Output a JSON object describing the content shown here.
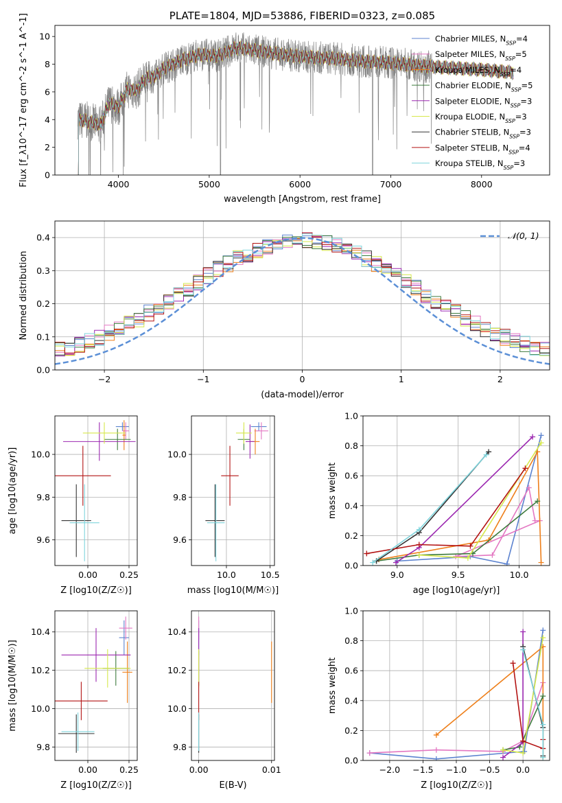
{
  "figure": {
    "colors": {
      "cmiles": "#5b82cf",
      "smiles": "#e377c2",
      "kmiles": "#ee7f1a",
      "celodie": "#3d7a3d",
      "selodie": "#9b27b0",
      "kelodie": "#d6e84a",
      "cstelib": "#333333",
      "sstelib": "#b31212",
      "kstelib": "#7ed4dc",
      "normal": "#5b8fd6",
      "data": "#808080"
    }
  },
  "chart_data": [
    {
      "id": "spectrum",
      "type": "line",
      "title": "PLATE=1804, MJD=53886, FIBERID=0323, z=0.085",
      "xlabel": "wavelength [Angstrom, rest frame]",
      "ylabel": "Flux [f_λ10^-17 erg cm^-2 s^-1 A^-1]",
      "xlim": [
        3300,
        8750
      ],
      "ylim": [
        0,
        10.8
      ],
      "xticks": [
        4000,
        5000,
        6000,
        7000,
        8000
      ],
      "yticks": [
        0,
        2,
        4,
        6,
        8,
        10
      ],
      "grid": false,
      "legend_position": "top-right",
      "legend": [
        {
          "label": "Chabrier MILES, N",
          "sub": "SSP",
          "tail": "=4",
          "color": "cmiles"
        },
        {
          "label": "Salpeter MILES, N",
          "sub": "SSP",
          "tail": "=5",
          "color": "smiles"
        },
        {
          "label": "Kroupa MILES, N",
          "sub": "SSP",
          "tail": "=4",
          "color": "kmiles"
        },
        {
          "label": "Chabrier ELODIE, N",
          "sub": "SSP",
          "tail": "=5",
          "color": "celodie"
        },
        {
          "label": "Salpeter ELODIE, N",
          "sub": "SSP",
          "tail": "=3",
          "color": "selodie"
        },
        {
          "label": "Kroupa ELODIE, N",
          "sub": "SSP",
          "tail": "=3",
          "color": "kelodie"
        },
        {
          "label": "Chabrier STELIB, N",
          "sub": "SSP",
          "tail": "=3",
          "color": "cstelib"
        },
        {
          "label": "Salpeter STELIB, N",
          "sub": "SSP",
          "tail": "=4",
          "color": "sstelib"
        },
        {
          "label": "Kroupa STELIB, N",
          "sub": "SSP",
          "tail": "=3",
          "color": "kstelib"
        }
      ],
      "model_shape": {
        "x": [
          3550,
          3650,
          3800,
          3900,
          4000,
          4100,
          4200,
          4300,
          4400,
          4500,
          4700,
          4900,
          5100,
          5300,
          5500,
          5800,
          6100,
          6400,
          6700,
          7000,
          7300,
          7500,
          8000,
          8350
        ],
        "y": [
          4.0,
          3.9,
          3.6,
          5.2,
          4.9,
          6.2,
          6.1,
          7.0,
          7.1,
          7.7,
          8.3,
          8.7,
          8.6,
          9.2,
          9.0,
          8.7,
          8.5,
          8.4,
          8.2,
          8.1,
          7.9,
          7.8,
          7.6,
          7.4
        ]
      }
    },
    {
      "id": "residuals",
      "type": "histogram",
      "xlabel": "(data-model)/error",
      "ylabel": "Normed distribution",
      "xlim": [
        -2.5,
        2.5
      ],
      "ylim": [
        0,
        0.45
      ],
      "xticks": [
        -2,
        -1,
        0,
        1,
        2
      ],
      "yticks": [
        0.0,
        0.1,
        0.2,
        0.3,
        0.4
      ],
      "grid": true,
      "legend_position": "top-right",
      "reference_curve": {
        "label": "𝒩(0, 1)",
        "mean": 0,
        "sigma": 1
      },
      "bin_width": 0.1
    },
    {
      "id": "age_vs_Z",
      "type": "errorbar",
      "xlabel": "Z [log10(Z/Z☉)]",
      "ylabel": "age  [log10(age/yr)]",
      "xlim": [
        -0.2,
        0.3
      ],
      "ylim": [
        9.48,
        10.18
      ],
      "xticks": [
        0.0,
        0.25
      ],
      "yticks": [
        9.6,
        9.8,
        10.0
      ],
      "grid": true,
      "points": [
        {
          "m": "cmiles",
          "x": 0.21,
          "xe": 0.04,
          "y": 10.13,
          "ye": 0.02
        },
        {
          "m": "smiles",
          "x": 0.23,
          "xe": 0.02,
          "y": 10.11,
          "ye": 0.04
        },
        {
          "m": "kmiles",
          "x": 0.22,
          "xe": 0.01,
          "y": 10.09,
          "ye": 0.07
        },
        {
          "m": "celodie",
          "x": 0.18,
          "xe": 0.08,
          "y": 10.07,
          "ye": 0.05
        },
        {
          "m": "selodie",
          "x": 0.07,
          "xe": 0.22,
          "y": 10.06,
          "ye": 0.09
        },
        {
          "m": "kelodie",
          "x": 0.1,
          "xe": 0.13,
          "y": 10.1,
          "ye": 0.05
        },
        {
          "m": "cstelib",
          "x": -0.07,
          "xe": 0.09,
          "y": 9.69,
          "ye": 0.17
        },
        {
          "m": "sstelib",
          "x": -0.03,
          "xe": 0.17,
          "y": 9.9,
          "ye": 0.14
        },
        {
          "m": "kstelib",
          "x": -0.02,
          "xe": 0.09,
          "y": 9.68,
          "ye": 0.18
        }
      ]
    },
    {
      "id": "age_vs_mass",
      "type": "errorbar",
      "xlabel": "mass [log10(M/M☉)]",
      "ylabel": "",
      "xlim": [
        9.6,
        10.55
      ],
      "ylim": [
        9.48,
        10.18
      ],
      "xticks": [
        10.0,
        10.5
      ],
      "yticks": [
        9.6,
        9.8,
        10.0
      ],
      "grid": true,
      "points": [
        {
          "m": "cmiles",
          "x": 10.37,
          "xe": 0.09,
          "y": 10.13,
          "ye": 0.02
        },
        {
          "m": "smiles",
          "x": 10.4,
          "xe": 0.08,
          "y": 10.11,
          "ye": 0.04
        },
        {
          "m": "kmiles",
          "x": 10.33,
          "xe": 0.05,
          "y": 10.06,
          "ye": 0.06
        },
        {
          "m": "celodie",
          "x": 10.2,
          "xe": 0.07,
          "y": 10.07,
          "ye": 0.05
        },
        {
          "m": "selodie",
          "x": 10.27,
          "xe": 0.05,
          "y": 10.06,
          "ye": 0.08
        },
        {
          "m": "kelodie",
          "x": 10.2,
          "xe": 0.09,
          "y": 10.1,
          "ye": 0.05
        },
        {
          "m": "cstelib",
          "x": 9.87,
          "xe": 0.11,
          "y": 9.69,
          "ye": 0.17
        },
        {
          "m": "sstelib",
          "x": 10.04,
          "xe": 0.1,
          "y": 9.9,
          "ye": 0.14
        },
        {
          "m": "kstelib",
          "x": 9.88,
          "xe": 0.1,
          "y": 9.68,
          "ye": 0.18
        }
      ]
    },
    {
      "id": "weight_vs_age",
      "type": "line",
      "xlabel": "age  [log10(age/yr)]",
      "ylabel": "mass weight",
      "xlim": [
        8.72,
        10.25
      ],
      "ylim": [
        0,
        1.0
      ],
      "xticks": [
        9.0,
        9.5,
        10.0
      ],
      "yticks": [
        0.0,
        0.2,
        0.4,
        0.6,
        0.8,
        1.0
      ],
      "grid": true,
      "series": [
        {
          "m": "cmiles",
          "x": [
            10.18,
            9.9,
            9.6,
            9.0
          ],
          "y": [
            0.87,
            0.01,
            0.06,
            0.03
          ]
        },
        {
          "m": "smiles",
          "x": [
            10.13,
            10.08,
            9.78,
            9.48,
            10.17
          ],
          "y": [
            0.3,
            0.52,
            0.07,
            0.06,
            0.3
          ]
        },
        {
          "m": "kmiles",
          "x": [
            10.18,
            10.15,
            9.75,
            8.85
          ],
          "y": [
            0.02,
            0.76,
            0.17,
            0.04
          ]
        },
        {
          "m": "celodie",
          "x": [
            10.15,
            9.62,
            9.18,
            8.83
          ],
          "y": [
            0.43,
            0.08,
            0.07,
            0.03
          ]
        },
        {
          "m": "selodie",
          "x": [
            10.11,
            9.18,
            8.99
          ],
          "y": [
            0.86,
            0.12,
            0.02
          ]
        },
        {
          "m": "kelodie",
          "x": [
            10.18,
            9.58,
            9.18
          ],
          "y": [
            0.82,
            0.05,
            0.07
          ]
        },
        {
          "m": "cstelib",
          "x": [
            9.75,
            9.18,
            8.83
          ],
          "y": [
            0.76,
            0.22,
            0.03
          ]
        },
        {
          "m": "sstelib",
          "x": [
            10.05,
            9.6,
            9.18,
            8.75
          ],
          "y": [
            0.65,
            0.13,
            0.14,
            0.08
          ]
        },
        {
          "m": "kstelib",
          "x": [
            9.73,
            9.18,
            8.8
          ],
          "y": [
            0.74,
            0.24,
            0.02
          ]
        }
      ]
    },
    {
      "id": "mass_vs_Z",
      "type": "errorbar",
      "xlabel": "Z [log10(Z/Z☉)]",
      "ylabel": "mass [log10(M/M☉)]",
      "xlim": [
        -0.2,
        0.3
      ],
      "ylim": [
        9.73,
        10.51
      ],
      "xticks": [
        0.0,
        0.25
      ],
      "yticks": [
        9.8,
        10.0,
        10.2,
        10.4
      ],
      "grid": true,
      "points": [
        {
          "m": "cmiles",
          "x": 0.22,
          "xe": 0.03,
          "y": 10.37,
          "ye": 0.09
        },
        {
          "m": "smiles",
          "x": 0.23,
          "xe": 0.04,
          "y": 10.42,
          "ye": 0.06
        },
        {
          "m": "kmiles",
          "x": 0.24,
          "xe": 0.03,
          "y": 10.19,
          "ye": 0.16
        },
        {
          "m": "celodie",
          "x": 0.17,
          "xe": 0.08,
          "y": 10.21,
          "ye": 0.09
        },
        {
          "m": "selodie",
          "x": 0.05,
          "xe": 0.21,
          "y": 10.28,
          "ye": 0.14
        },
        {
          "m": "kelodie",
          "x": 0.12,
          "xe": 0.14,
          "y": 10.21,
          "ye": 0.1
        },
        {
          "m": "cstelib",
          "x": -0.07,
          "xe": 0.11,
          "y": 9.87,
          "ye": 0.1
        },
        {
          "m": "sstelib",
          "x": -0.04,
          "xe": 0.16,
          "y": 10.04,
          "ye": 0.1
        },
        {
          "m": "kstelib",
          "x": -0.06,
          "xe": 0.1,
          "y": 9.88,
          "ye": 0.1
        }
      ]
    },
    {
      "id": "mass_vs_ebv",
      "type": "errorbar",
      "xlabel": "E(B-V)",
      "ylabel": "",
      "xlim": [
        -0.001,
        0.0104
      ],
      "ylim": [
        9.73,
        10.51
      ],
      "xticks": [
        0.0,
        0.01
      ],
      "xticklabels": [
        "0.00",
        "0.01"
      ],
      "yticks": [
        9.8,
        10.0,
        10.2,
        10.4
      ],
      "grid": true,
      "points": [
        {
          "m": "cmiles",
          "x": 0.0,
          "xe": 0.0,
          "y": 10.37,
          "ye": 0.09
        },
        {
          "m": "smiles",
          "x": 0.0,
          "xe": 0.0,
          "y": 10.42,
          "ye": 0.06
        },
        {
          "m": "kmiles",
          "x": 0.01,
          "xe": 0.0,
          "y": 10.19,
          "ye": 0.16
        },
        {
          "m": "celodie",
          "x": 0.0,
          "xe": 0.0,
          "y": 10.21,
          "ye": 0.09
        },
        {
          "m": "selodie",
          "x": 0.0,
          "xe": 0.0,
          "y": 10.28,
          "ye": 0.14
        },
        {
          "m": "kelodie",
          "x": 0.0,
          "xe": 0.0,
          "y": 10.21,
          "ye": 0.1
        },
        {
          "m": "cstelib",
          "x": 0.0,
          "xe": 0.0,
          "y": 9.87,
          "ye": 0.1
        },
        {
          "m": "sstelib",
          "x": 0.0,
          "xe": 0.0,
          "y": 10.04,
          "ye": 0.1
        },
        {
          "m": "kstelib",
          "x": 0.0,
          "xe": 0.0,
          "y": 9.88,
          "ye": 0.1
        }
      ]
    },
    {
      "id": "weight_vs_Z",
      "type": "line",
      "xlabel": "Z [log10(Z/Z☉)]",
      "ylabel": "mass weight",
      "xlim": [
        -2.4,
        0.4
      ],
      "ylim": [
        0,
        1.0
      ],
      "xticks": [
        -2.0,
        -1.5,
        -1.0,
        -0.5,
        0.0
      ],
      "yticks": [
        0.0,
        0.2,
        0.4,
        0.6,
        0.8,
        1.0
      ],
      "grid": true,
      "series": [
        {
          "m": "cmiles",
          "x": [
            0.3,
            0.02,
            -1.3,
            -2.3
          ],
          "y": [
            0.87,
            0.06,
            0.01,
            0.05
          ]
        },
        {
          "m": "smiles",
          "x": [
            0.3,
            0.0,
            -0.3,
            -1.3,
            -2.3
          ],
          "y": [
            0.52,
            0.13,
            0.06,
            0.07,
            0.05
          ]
        },
        {
          "m": "kmiles",
          "x": [
            0.3,
            0.3,
            -1.3
          ],
          "y": [
            0.02,
            0.76,
            0.17
          ]
        },
        {
          "m": "celodie",
          "x": [
            0.3,
            -0.05,
            -0.3
          ],
          "y": [
            0.43,
            0.09,
            0.07
          ]
        },
        {
          "m": "selodie",
          "x": [
            0.0,
            0.0,
            -0.3
          ],
          "y": [
            0.86,
            0.12,
            0.02
          ]
        },
        {
          "m": "kelodie",
          "x": [
            0.3,
            0.0,
            -0.3
          ],
          "y": [
            0.82,
            0.05,
            0.07
          ]
        },
        {
          "m": "cstelib",
          "x": [
            0.0,
            0.3,
            0.3
          ],
          "y": [
            0.76,
            0.22,
            0.03
          ]
        },
        {
          "m": "sstelib",
          "x": [
            -0.15,
            0.0,
            0.3,
            0.3
          ],
          "y": [
            0.65,
            0.13,
            0.08,
            0.14
          ]
        },
        {
          "m": "kstelib",
          "x": [
            0.0,
            0.3,
            0.3
          ],
          "y": [
            0.74,
            0.24,
            0.02
          ]
        }
      ]
    }
  ]
}
